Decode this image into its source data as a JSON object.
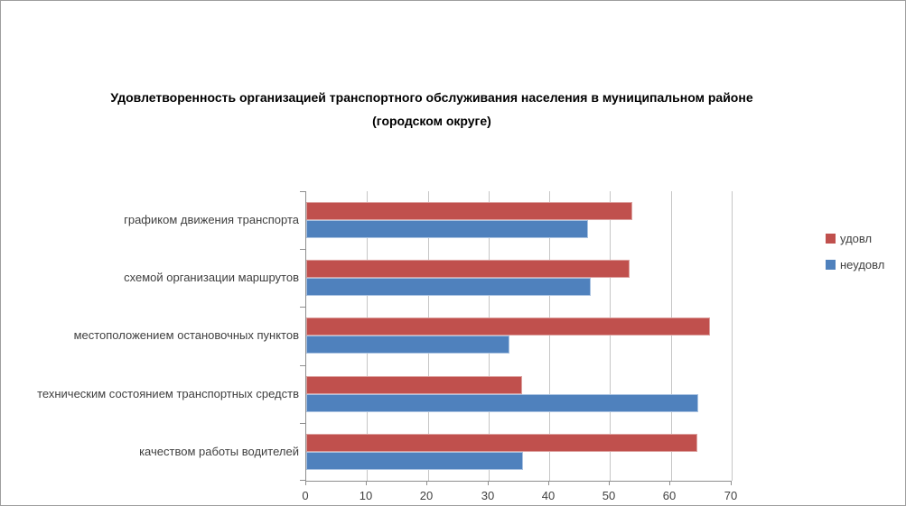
{
  "title": {
    "line1": "Удовлетворенность организацией транспортного обслуживания населения в муниципальном районе",
    "line2": "(городском округе)"
  },
  "legend": {
    "items": [
      {
        "label": "удовл",
        "color": "#C0504D"
      },
      {
        "label": "неудовл",
        "color": "#4F81BD"
      }
    ]
  },
  "axis": {
    "ticks": [
      "0",
      "10",
      "20",
      "30",
      "40",
      "50",
      "60",
      "70"
    ]
  },
  "chart_data": {
    "type": "bar",
    "orientation": "horizontal",
    "title": "Удовлетворенность организацией транспортного обслуживания населения в муниципальном районе (городском округе)",
    "categories": [
      "графиком движения  транспорта",
      "схемой организации маршрутов",
      "местоположением  остановочных пунктов",
      "техническим  состоянием транспортных средств",
      "качеством  работы водителей"
    ],
    "series": [
      {
        "name": "удовл",
        "color": "#C0504D",
        "values": [
          53.7,
          53.2,
          66.5,
          35.5,
          64.4
        ]
      },
      {
        "name": "неудовл",
        "color": "#4F81BD",
        "values": [
          46.3,
          46.8,
          33.5,
          64.5,
          35.6
        ]
      }
    ],
    "xlabel": "",
    "ylabel": "",
    "xlim": [
      0,
      70
    ],
    "xticks": [
      0,
      10,
      20,
      30,
      40,
      50,
      60,
      70
    ],
    "grid": "vertical-gridlines-on",
    "legend_position": "right"
  }
}
